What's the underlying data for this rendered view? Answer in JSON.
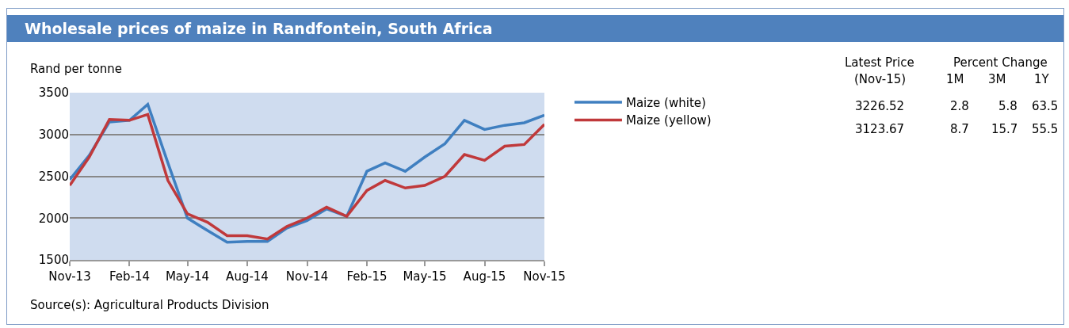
{
  "chart_data": {
    "type": "line",
    "title": "Wholesale prices of maize in Randfontein, South Africa",
    "ylabel": "Rand per tonne",
    "x": [
      "2013-11",
      "2013-12",
      "2014-01",
      "2014-02",
      "2014-03",
      "2014-04",
      "2014-05",
      "2014-06",
      "2014-07",
      "2014-08",
      "2014-09",
      "2014-10",
      "2014-11",
      "2014-12",
      "2015-01",
      "2015-02",
      "2015-03",
      "2015-04",
      "2015-05",
      "2015-06",
      "2015-07",
      "2015-08",
      "2015-09",
      "2015-10",
      "2015-11"
    ],
    "series": [
      {
        "name": "Maize (white)",
        "color": "#3f7fc0",
        "values": [
          2460,
          2750,
          3150,
          3170,
          3360,
          2660,
          2000,
          1850,
          1710,
          1720,
          1720,
          1880,
          1970,
          2110,
          2020,
          2560,
          2660,
          2560,
          2730,
          2890,
          3170,
          3060,
          3110,
          3140,
          3230
        ]
      },
      {
        "name": "Maize (yellow)",
        "color": "#c0393b",
        "values": [
          2390,
          2730,
          3180,
          3170,
          3240,
          2450,
          2050,
          1950,
          1790,
          1790,
          1750,
          1900,
          2000,
          2130,
          2020,
          2330,
          2450,
          2360,
          2390,
          2500,
          2760,
          2690,
          2860,
          2880,
          3120
        ]
      }
    ],
    "xlim": [
      "2013-11",
      "2015-11"
    ],
    "xticks": [
      {
        "value": "2013-11",
        "label": "Nov-13"
      },
      {
        "value": "2014-02",
        "label": "Feb-14"
      },
      {
        "value": "2014-05",
        "label": "May-14"
      },
      {
        "value": "2014-08",
        "label": "Aug-14"
      },
      {
        "value": "2014-11",
        "label": "Nov-14"
      },
      {
        "value": "2015-02",
        "label": "Feb-15"
      },
      {
        "value": "2015-05",
        "label": "May-15"
      },
      {
        "value": "2015-08",
        "label": "Aug-15"
      },
      {
        "value": "2015-11",
        "label": "Nov-15"
      }
    ],
    "ylim": [
      1500,
      3500
    ],
    "yticks": [
      1500,
      2000,
      2500,
      3000,
      3500
    ],
    "grid": "y",
    "legend": "right",
    "marker": "none",
    "line_style": "solid",
    "annotations": [
      "Latest Price",
      "(Nov-15)",
      "Percent Change",
      "1M",
      "3M",
      "1Y",
      "3226.52",
      "2.8",
      "5.8",
      "63.5",
      "3123.67",
      "8.7",
      "15.7",
      "55.5",
      "Source(s): Agricultural Products Division"
    ]
  }
}
